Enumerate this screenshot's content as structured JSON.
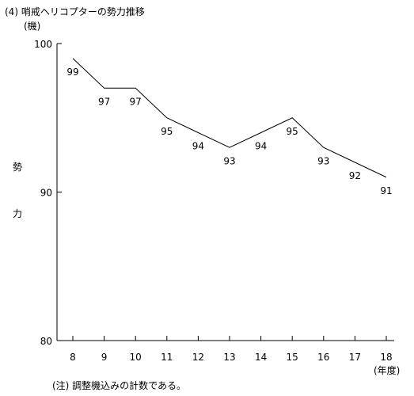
{
  "chart_data": {
    "type": "line",
    "title": "(4) 哨戒ヘリコプターの勢力推移",
    "unit_label": "(機)",
    "ylabel": "勢力",
    "xlabel": "(年度)",
    "x": [
      8,
      9,
      10,
      11,
      12,
      13,
      14,
      15,
      16,
      17,
      18
    ],
    "values": [
      99,
      97,
      97,
      95,
      94,
      93,
      94,
      95,
      93,
      92,
      91
    ],
    "ylim": [
      80,
      100
    ],
    "yticks": [
      80,
      90,
      100
    ],
    "grid": false,
    "legend": "none",
    "note": "(注) 調整機込みの計数である。"
  },
  "colors": {
    "line": "#000000",
    "axis": "#000000",
    "text": "#000000",
    "background": "#ffffff"
  }
}
